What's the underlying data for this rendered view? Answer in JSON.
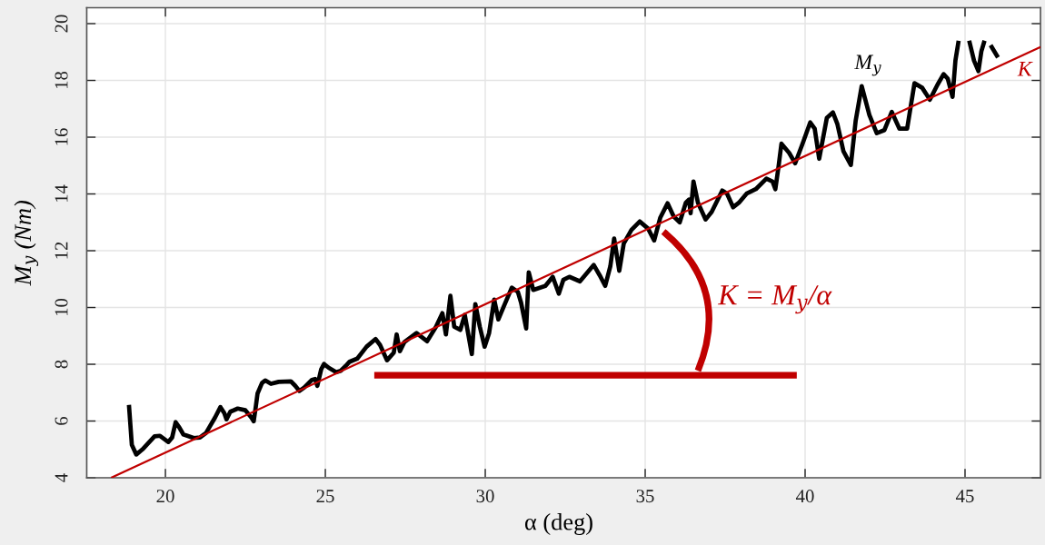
{
  "chart_data": {
    "type": "line",
    "xlabel": "α (deg)",
    "ylabel": "M$_{y}$ (Nm)",
    "xlim": [
      17.54,
      47.36
    ],
    "ylim": [
      4,
      20.56
    ],
    "xticks": [
      20,
      25,
      30,
      35,
      40,
      45
    ],
    "yticks": [
      4,
      6,
      8,
      10,
      12,
      14,
      16,
      18,
      20
    ],
    "grid": true,
    "line_style": "solid",
    "annotations": [
      "K = M$_{y}$/α"
    ],
    "series": [
      {
        "name": "M$_{y}$",
        "color": "#000000",
        "x": [
          18.86,
          18.95,
          19.09,
          19.28,
          19.66,
          19.83,
          20.09,
          20.21,
          20.32,
          20.42,
          20.56,
          20.89,
          21.08,
          21.27,
          21.55,
          21.72,
          21.84,
          21.91,
          22.03,
          22.26,
          22.5,
          22.69,
          22.76,
          22.83,
          22.88,
          23.02,
          23.12,
          23.3,
          23.54,
          23.92,
          24.06,
          24.19,
          24.34,
          24.58,
          24.68,
          24.75,
          24.87,
          24.96,
          25.1,
          25.34,
          25.48,
          25.67,
          25.76,
          26.0,
          26.29,
          26.57,
          26.71,
          26.93,
          27.14,
          27.23,
          27.33,
          27.47,
          27.85,
          28.18,
          28.46,
          28.66,
          28.77,
          28.91,
          29.03,
          29.22,
          29.36,
          29.58,
          29.69,
          29.83,
          29.98,
          30.12,
          30.28,
          30.41,
          30.57,
          30.83,
          31.02,
          31.12,
          31.28,
          31.36,
          31.5,
          31.88,
          32.11,
          32.3,
          32.44,
          32.63,
          32.96,
          33.39,
          33.58,
          33.75,
          33.91,
          34.03,
          34.19,
          34.33,
          34.57,
          34.83,
          35.09,
          35.28,
          35.47,
          35.7,
          35.89,
          36.08,
          36.27,
          36.37,
          36.42,
          36.51,
          36.65,
          36.89,
          37.08,
          37.41,
          37.56,
          37.75,
          37.93,
          38.17,
          38.46,
          38.79,
          38.98,
          39.07,
          39.17,
          39.26,
          39.5,
          39.69,
          39.92,
          40.16,
          40.3,
          40.44,
          40.68,
          40.87,
          41.01,
          41.2,
          41.43,
          41.58,
          41.77,
          42.01,
          42.24,
          42.48,
          42.71,
          42.95,
          43.19,
          43.42,
          43.66,
          43.9,
          44.14,
          44.33,
          44.46,
          44.61,
          44.7,
          44.8,
          44.96,
          45.13,
          45.28,
          45.42,
          45.51,
          45.61,
          45.7,
          45.8,
          46.03
        ],
        "values": [
          6.57,
          5.16,
          4.82,
          5.0,
          5.46,
          5.48,
          5.26,
          5.42,
          5.96,
          5.8,
          5.53,
          5.4,
          5.42,
          5.58,
          6.12,
          6.49,
          6.28,
          6.06,
          6.33,
          6.44,
          6.38,
          6.12,
          5.99,
          6.54,
          6.97,
          7.34,
          7.43,
          7.31,
          7.38,
          7.4,
          7.24,
          7.06,
          7.18,
          7.45,
          7.48,
          7.24,
          7.82,
          8.01,
          7.88,
          7.72,
          7.77,
          7.98,
          8.09,
          8.2,
          8.62,
          8.89,
          8.68,
          8.14,
          8.41,
          9.05,
          8.46,
          8.78,
          9.1,
          8.81,
          9.32,
          9.8,
          9.05,
          10.41,
          9.32,
          9.21,
          9.74,
          8.36,
          10.12,
          9.32,
          8.62,
          9.1,
          10.28,
          9.58,
          10.01,
          10.7,
          10.55,
          10.17,
          9.26,
          11.24,
          10.62,
          10.76,
          11.08,
          10.49,
          10.97,
          11.08,
          10.92,
          11.5,
          11.13,
          10.76,
          11.45,
          12.43,
          11.29,
          12.25,
          12.73,
          13.03,
          12.78,
          12.36,
          13.16,
          13.67,
          13.21,
          13.0,
          13.69,
          13.8,
          13.32,
          14.44,
          13.69,
          13.1,
          13.37,
          14.12,
          14.01,
          13.53,
          13.69,
          14.01,
          14.17,
          14.54,
          14.44,
          14.17,
          14.97,
          15.77,
          15.45,
          15.08,
          15.77,
          16.52,
          16.3,
          15.24,
          16.68,
          16.87,
          16.46,
          15.5,
          15.02,
          16.57,
          17.8,
          16.78,
          16.14,
          16.25,
          16.89,
          16.3,
          16.3,
          17.9,
          17.74,
          17.32,
          17.85,
          18.22,
          18.06,
          17.42,
          18.7,
          19.4,
          null,
          19.4,
          18.7,
          18.33,
          19.02,
          19.4,
          null,
          19.24,
          18.81
        ]
      },
      {
        "name": "K",
        "color": "#c00000",
        "x": [
          18.3,
          47.36
        ],
        "values": [
          4.0,
          19.18
        ]
      },
      {
        "color": "#c00000",
        "x": [
          26.53,
          39.74
        ],
        "values": [
          7.61,
          7.61
        ]
      }
    ]
  }
}
